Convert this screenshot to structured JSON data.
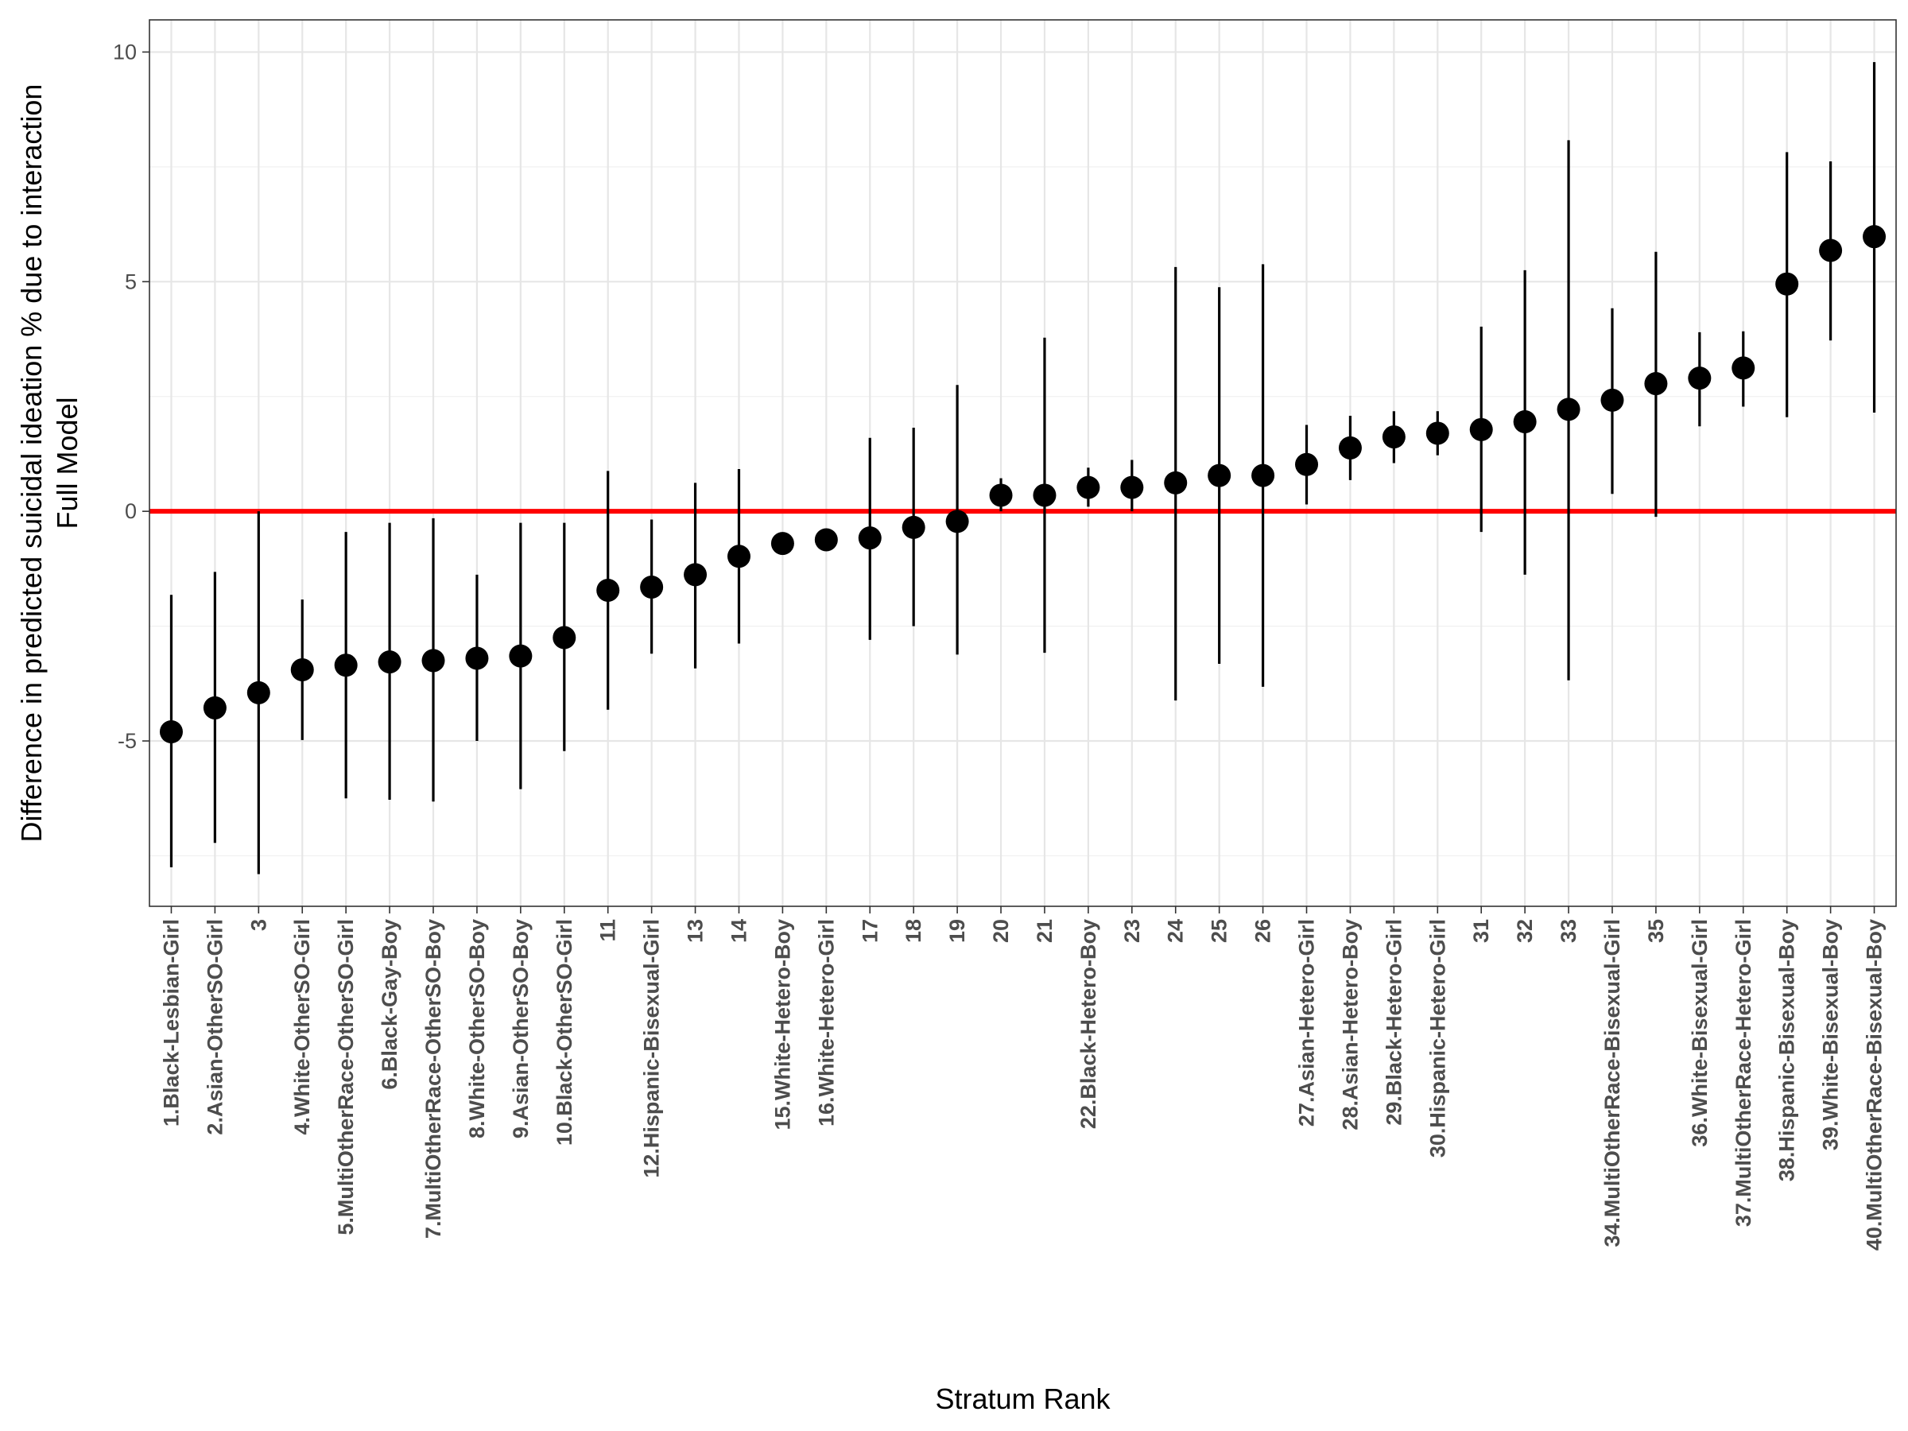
{
  "chart_data": {
    "type": "pointrange",
    "xlabel": "Stratum Rank",
    "ylabel_lines": [
      "Difference in predicted suicidal ideation % due to interaction",
      "Full Model"
    ],
    "ylim": [
      -8.6,
      10.7
    ],
    "yticks": [
      -5,
      0,
      5,
      10
    ],
    "ytick_labels": [
      "-5",
      "0",
      "5",
      "10"
    ],
    "grid": true,
    "reference_line": {
      "y": 0,
      "color": "#ff0000"
    },
    "point_color": "#000000",
    "categories": [
      "1.Black-Lesbian-Girl",
      "2.Asian-OtherSO-Girl",
      "3",
      "4.White-OtherSO-Girl",
      "5.MultiOtherRace-OtherSO-Girl",
      "6.Black-Gay-Boy",
      "7.MultiOtherRace-OtherSO-Boy",
      "8.White-OtherSO-Boy",
      "9.Asian-OtherSO-Boy",
      "10.Black-OtherSO-Girl",
      "11",
      "12.Hispanic-Bisexual-Girl",
      "13",
      "14",
      "15.White-Hetero-Boy",
      "16.White-Hetero-Girl",
      "17",
      "18",
      "19",
      "20",
      "21",
      "22.Black-Hetero-Boy",
      "23",
      "24",
      "25",
      "26",
      "27.Asian-Hetero-Girl",
      "28.Asian-Hetero-Boy",
      "29.Black-Hetero-Girl",
      "30.Hispanic-Hetero-Girl",
      "31",
      "32",
      "33",
      "34.MultiOtherRace-Bisexual-Girl",
      "35",
      "36.White-Bisexual-Girl",
      "37.MultiOtherRace-Hetero-Girl",
      "38.Hispanic-Bisexual-Boy",
      "39.White-Bisexual-Boy",
      "40.MultiOtherRace-Bisexual-Boy"
    ],
    "estimates": [
      -4.8,
      -4.28,
      -3.95,
      -3.45,
      -3.35,
      -3.28,
      -3.25,
      -3.2,
      -3.15,
      -2.75,
      -1.72,
      -1.65,
      -1.38,
      -0.98,
      -0.7,
      -0.62,
      -0.58,
      -0.35,
      -0.22,
      0.35,
      0.35,
      0.52,
      0.52,
      0.62,
      0.78,
      0.78,
      1.02,
      1.38,
      1.62,
      1.7,
      1.78,
      1.95,
      2.22,
      2.42,
      2.78,
      2.9,
      3.12,
      4.95,
      5.68,
      5.98
    ],
    "lower": [
      -7.75,
      -7.22,
      -7.9,
      -4.98,
      -6.25,
      -6.28,
      -6.32,
      -5.0,
      -6.05,
      -5.22,
      -4.32,
      -3.1,
      -3.42,
      -2.88,
      -0.68,
      -0.55,
      -2.8,
      -2.5,
      -3.12,
      0.0,
      -3.08,
      0.1,
      0.0,
      -4.12,
      -3.32,
      -3.82,
      0.15,
      0.68,
      1.05,
      1.22,
      -0.45,
      -1.38,
      -3.68,
      0.38,
      -0.12,
      1.85,
      2.28,
      2.05,
      3.72,
      2.15
    ],
    "upper": [
      -1.82,
      -1.32,
      0.0,
      -1.92,
      -0.45,
      -0.25,
      -0.15,
      -1.38,
      -0.25,
      -0.25,
      0.88,
      -0.18,
      0.62,
      0.92,
      -0.68,
      -0.55,
      1.6,
      1.82,
      2.75,
      0.72,
      3.78,
      0.95,
      1.12,
      5.32,
      4.88,
      5.38,
      1.88,
      2.08,
      2.18,
      2.18,
      4.02,
      5.25,
      8.08,
      4.42,
      5.65,
      3.9,
      3.92,
      7.82,
      7.62,
      9.78
    ]
  }
}
